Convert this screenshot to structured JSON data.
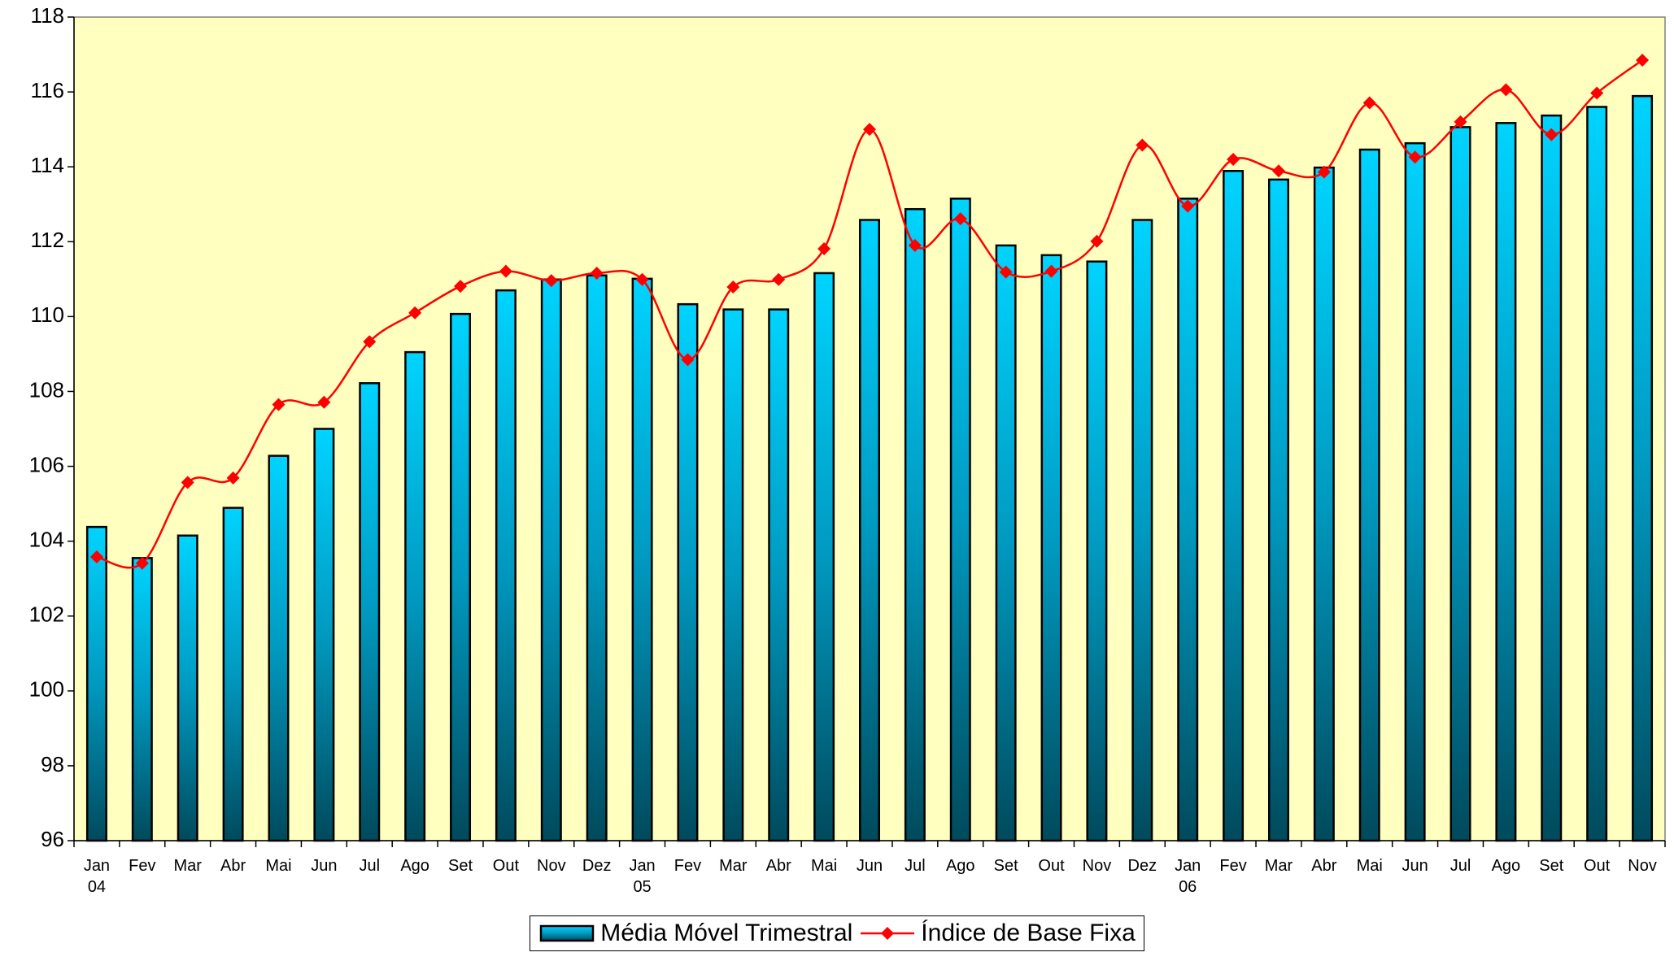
{
  "chart_data": {
    "type": "bar",
    "categories": [
      "Jan\n04",
      "Fev",
      "Mar",
      "Abr",
      "Mai",
      "Jun",
      "Jul",
      "Ago",
      "Set",
      "Out",
      "Nov",
      "Dez",
      "Jan\n05",
      "Fev",
      "Mar",
      "Abr",
      "Mai",
      "Jun",
      "Jul",
      "Ago",
      "Set",
      "Out",
      "Nov",
      "Dez",
      "Jan\n06",
      "Fev",
      "Mar",
      "Abr",
      "Mai",
      "Jun",
      "Jul",
      "Ago",
      "Set",
      "Out",
      "Nov"
    ],
    "series": [
      {
        "name": "Média Móvel Trimestral",
        "type": "bar",
        "color": "#00ccff",
        "values": [
          104.38,
          103.55,
          104.15,
          104.89,
          106.28,
          107.0,
          108.22,
          109.05,
          110.07,
          110.7,
          110.99,
          111.1,
          111.01,
          110.33,
          110.19,
          110.19,
          111.16,
          112.58,
          112.87,
          113.15,
          111.9,
          111.64,
          111.47,
          112.58,
          113.15,
          113.89,
          113.66,
          113.98,
          114.46,
          114.63,
          115.06,
          115.17,
          115.37,
          115.6,
          115.89
        ]
      },
      {
        "name": "Índice de Base Fixa",
        "type": "line",
        "color": "#ff0000",
        "values": [
          103.58,
          103.41,
          105.57,
          105.69,
          107.65,
          107.71,
          109.33,
          110.1,
          110.81,
          111.21,
          110.96,
          111.16,
          110.99,
          108.85,
          110.79,
          110.99,
          111.81,
          115.0,
          111.9,
          112.61,
          111.19,
          111.21,
          112.01,
          114.58,
          112.95,
          114.2,
          113.89,
          113.86,
          115.71,
          114.26,
          115.2,
          116.06,
          114.86,
          115.97,
          116.85
        ]
      }
    ],
    "ylim": [
      96,
      118
    ],
    "yticks": [
      96,
      98,
      100,
      102,
      104,
      106,
      108,
      110,
      112,
      114,
      116,
      118
    ],
    "background": "#ffffc0"
  }
}
